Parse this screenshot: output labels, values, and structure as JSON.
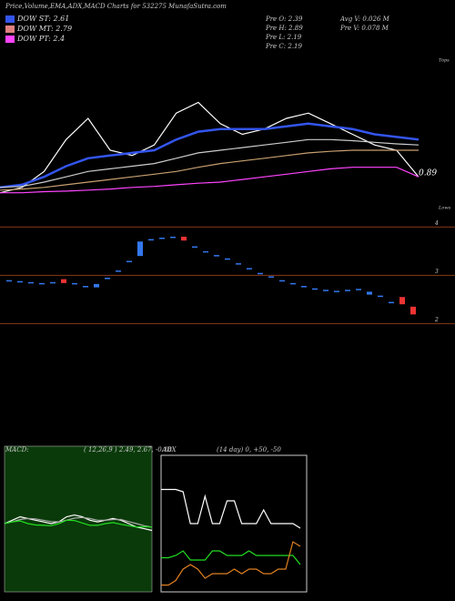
{
  "header": {
    "title": "Price,Volume,EMA,ADX,MACD Charts for 532275 MunafaSutra.com",
    "legend": [
      {
        "label": "DOW ST: 2.61",
        "color": "#3355ee"
      },
      {
        "label": "DOW MT: 2.79",
        "color": "#e08080"
      },
      {
        "label": "DOW PT: 2.4",
        "color": "#ff44ff"
      }
    ],
    "stats": [
      "Pre O: 2.39",
      "Pre H: 2.89",
      "Pre L: 2.19",
      "Pre C: 2.19"
    ],
    "volume": [
      "Avg V: 0.026 M",
      "Pre V: 0.078 M"
    ]
  },
  "chart_data": [
    {
      "type": "line",
      "tops": "Tops",
      "lows": "Lows",
      "last": "0.89",
      "ylim": [
        1.5,
        4.5
      ],
      "series": [
        {
          "color": "#ffffff",
          "values": [
            1.9,
            2.0,
            2.3,
            2.9,
            3.3,
            2.7,
            2.6,
            2.8,
            3.4,
            3.6,
            3.2,
            3.0,
            3.1,
            3.3,
            3.4,
            3.2,
            3.0,
            2.8,
            2.7,
            2.2
          ]
        },
        {
          "color": "#3355ee",
          "values": [
            2.0,
            2.05,
            2.2,
            2.4,
            2.55,
            2.6,
            2.65,
            2.7,
            2.9,
            3.05,
            3.1,
            3.1,
            3.1,
            3.15,
            3.2,
            3.15,
            3.1,
            3.0,
            2.95,
            2.9
          ]
        },
        {
          "color": "#cccccc",
          "values": [
            2.0,
            2.02,
            2.1,
            2.2,
            2.3,
            2.35,
            2.4,
            2.45,
            2.55,
            2.65,
            2.7,
            2.75,
            2.8,
            2.85,
            2.9,
            2.9,
            2.88,
            2.85,
            2.82,
            2.8
          ]
        },
        {
          "color": "#c8a070",
          "values": [
            1.95,
            1.97,
            2.0,
            2.05,
            2.1,
            2.15,
            2.2,
            2.25,
            2.3,
            2.38,
            2.45,
            2.5,
            2.55,
            2.6,
            2.65,
            2.68,
            2.7,
            2.7,
            2.7,
            2.7
          ]
        },
        {
          "color": "#ff44ff",
          "values": [
            1.9,
            1.9,
            1.92,
            1.93,
            1.95,
            1.97,
            2.0,
            2.02,
            2.05,
            2.08,
            2.1,
            2.15,
            2.2,
            2.25,
            2.3,
            2.35,
            2.38,
            2.38,
            2.38,
            2.2
          ]
        }
      ]
    },
    {
      "type": "candlestick",
      "ylim": [
        1.8,
        4.1
      ],
      "yticks": [
        2,
        3,
        4
      ],
      "up_color": "#3377ee",
      "down_color": "#ee3333",
      "open": [
        2.9,
        2.88,
        2.86,
        2.84,
        2.86,
        2.92,
        2.84,
        2.78,
        2.75,
        2.95,
        3.1,
        3.3,
        3.4,
        3.75,
        3.78,
        3.8,
        3.8,
        3.6,
        3.5,
        3.42,
        3.35,
        3.25,
        3.15,
        3.05,
        2.98,
        2.9,
        2.84,
        2.78,
        2.73,
        2.7,
        2.68,
        2.7,
        2.72,
        2.6,
        2.58,
        2.45,
        2.55,
        2.35
      ],
      "close": [
        2.9,
        2.88,
        2.86,
        2.84,
        2.86,
        2.84,
        2.84,
        2.78,
        2.82,
        2.95,
        3.1,
        3.3,
        3.7,
        3.75,
        3.78,
        3.8,
        3.72,
        3.6,
        3.5,
        3.42,
        3.35,
        3.25,
        3.15,
        3.05,
        2.98,
        2.9,
        2.84,
        2.78,
        2.73,
        2.7,
        2.68,
        2.7,
        2.72,
        2.66,
        2.58,
        2.45,
        2.4,
        2.19
      ]
    },
    {
      "type": "line",
      "title": "MACD:",
      "subtitle": "( 12,26,9 ) 2.49, 2.67, -0.18",
      "ylim": [
        -2,
        2
      ],
      "series": [
        {
          "color": "#ffffff",
          "values": [
            0,
            0.1,
            0.2,
            0.15,
            0.1,
            0.05,
            0,
            0.05,
            0.2,
            0.25,
            0.2,
            0.1,
            0.05,
            0.1,
            0.15,
            0.1,
            0,
            -0.1,
            -0.15,
            -0.2
          ]
        },
        {
          "color": "#aaaaaa",
          "values": [
            0,
            0.05,
            0.12,
            0.15,
            0.14,
            0.1,
            0.06,
            0.05,
            0.1,
            0.16,
            0.18,
            0.15,
            0.1,
            0.1,
            0.12,
            0.12,
            0.06,
            0,
            -0.06,
            -0.1
          ]
        },
        {
          "color": "#22dd22",
          "values": [
            0,
            0.05,
            0.08,
            0,
            -0.04,
            -0.05,
            -0.06,
            0,
            0.1,
            0.09,
            0.02,
            -0.05,
            -0.05,
            0,
            0.03,
            -0.02,
            -0.06,
            -0.1,
            -0.09,
            -0.1
          ]
        }
      ]
    },
    {
      "type": "line",
      "title": "ADX",
      "subtitle": "(14 day) 0, +50, -50",
      "ylim": [
        0,
        60
      ],
      "series": [
        {
          "color": "#ffffff",
          "values": [
            45,
            45,
            45,
            44,
            30,
            30,
            42,
            30,
            30,
            40,
            40,
            30,
            30,
            30,
            36,
            30,
            30,
            30,
            30,
            28
          ]
        },
        {
          "color": "#22dd22",
          "values": [
            15,
            15,
            16,
            18,
            14,
            14,
            14,
            18,
            18,
            16,
            16,
            16,
            18,
            16,
            16,
            16,
            16,
            16,
            16,
            12
          ]
        },
        {
          "color": "#e08020",
          "values": [
            3,
            3,
            5,
            10,
            12,
            10,
            6,
            8,
            8,
            8,
            10,
            8,
            10,
            10,
            8,
            8,
            10,
            10,
            22,
            20
          ]
        }
      ]
    }
  ]
}
